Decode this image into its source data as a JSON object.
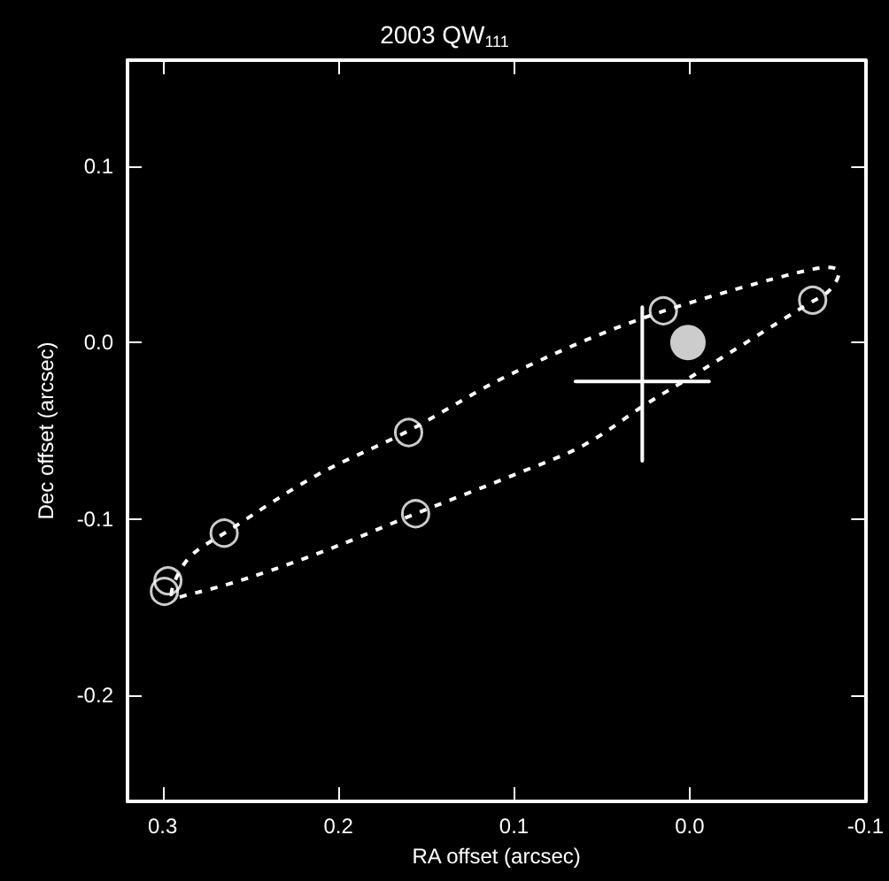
{
  "chart_data": {
    "type": "scatter",
    "title": "2003 QW$_{111}$",
    "xlabel": "RA offset (arcsec)",
    "ylabel": "Dec offset (arcsec)",
    "xlim": [
      0.32,
      -0.1
    ],
    "xticks": [
      0.3,
      0.2,
      0.1,
      {
        "value": 0,
        "label": "0.0"
      },
      -0.1
    ],
    "ylim": [
      -0.26,
      0.16
    ],
    "yticks": [
      -0.2,
      -0.1,
      {
        "value": 0,
        "label": "0.0"
      },
      0.1
    ],
    "grid": false,
    "series": [
      {
        "marker": "circle",
        "color": "#ffffff",
        "x": [
          0.297,
          0.299,
          0.265,
          0.16,
          0.156,
          0.015,
          -0.07
        ],
        "values": [
          -0.135,
          -0.141,
          -0.108,
          -0.051,
          -0.097,
          0.018,
          0.024
        ]
      },
      {
        "marker": "circle",
        "color": "#ffffff",
        "x": [
          0.001
        ],
        "values": [
          0.0
        ]
      },
      {
        "type": "line",
        "marker": "none",
        "line_style": "solid",
        "color": "#ffffff",
        "x": [
          0.065,
          -0.011
        ],
        "values": [
          -0.022,
          -0.022
        ]
      },
      {
        "type": "line",
        "marker": "none",
        "line_style": "solid",
        "color": "#ffffff",
        "x": [
          0.027,
          0.027
        ],
        "values": [
          0.02,
          -0.067
        ]
      }
    ]
  }
}
